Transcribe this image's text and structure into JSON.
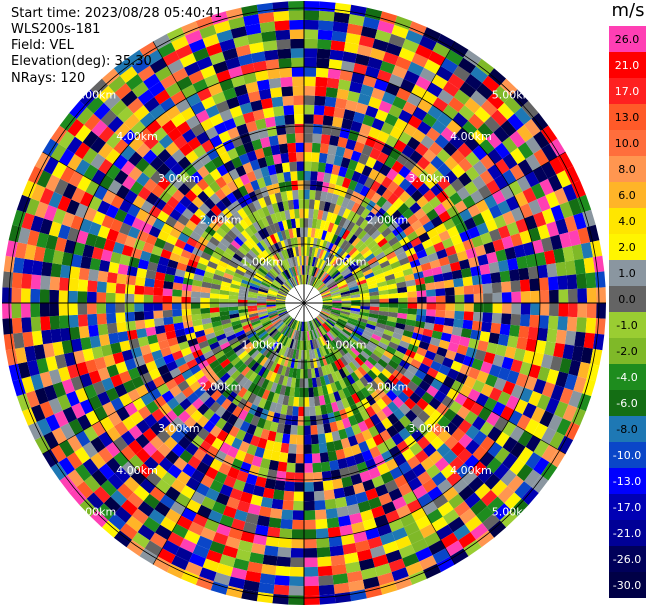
{
  "info": {
    "start_time": "Start time: 2023/08/28 05:40:41",
    "instrument": "WLS200s-181",
    "field": "Field: VEL",
    "elevation": "Elevation(deg): 35.30",
    "nrays": "NRays: 120"
  },
  "chart_data": {
    "type": "ppi",
    "field": "VEL",
    "units": "m/s",
    "nrays": 120,
    "elevation_deg": 35.3,
    "range_ring_labels": [
      "1.00km",
      "2.00km",
      "3.00km",
      "4.00km",
      "5.00km"
    ],
    "colorbar": {
      "unit": "m/s",
      "levels": [
        {
          "label": "26.0",
          "color": "#ff3fb4"
        },
        {
          "label": "21.0",
          "color": "#ff0000"
        },
        {
          "label": "17.0",
          "color": "#ff2020"
        },
        {
          "label": "13.0",
          "color": "#ff5a28"
        },
        {
          "label": "10.0",
          "color": "#ff6e3c"
        },
        {
          "label": "8.0",
          "color": "#ff9650"
        },
        {
          "label": "6.0",
          "color": "#ffb428"
        },
        {
          "label": "4.0",
          "color": "#ffe600"
        },
        {
          "label": "2.0",
          "color": "#fff500"
        },
        {
          "label": "1.0",
          "color": "#8a96a0"
        },
        {
          "label": "0.0",
          "color": "#646464"
        },
        {
          "label": "-1.0",
          "color": "#9acd32"
        },
        {
          "label": "-2.0",
          "color": "#7fb928"
        },
        {
          "label": "-4.0",
          "color": "#1e8c1e"
        },
        {
          "label": "-6.0",
          "color": "#146e14"
        },
        {
          "label": "-8.0",
          "color": "#1e78b4"
        },
        {
          "label": "-10.0",
          "color": "#0a46c8"
        },
        {
          "label": "-13.0",
          "color": "#0000ff"
        },
        {
          "label": "-17.0",
          "color": "#0000b4"
        },
        {
          "label": "-21.0",
          "color": "#000096"
        },
        {
          "label": "-26.0",
          "color": "#00005a"
        },
        {
          "label": "-30.0",
          "color": "#000046"
        }
      ]
    }
  }
}
